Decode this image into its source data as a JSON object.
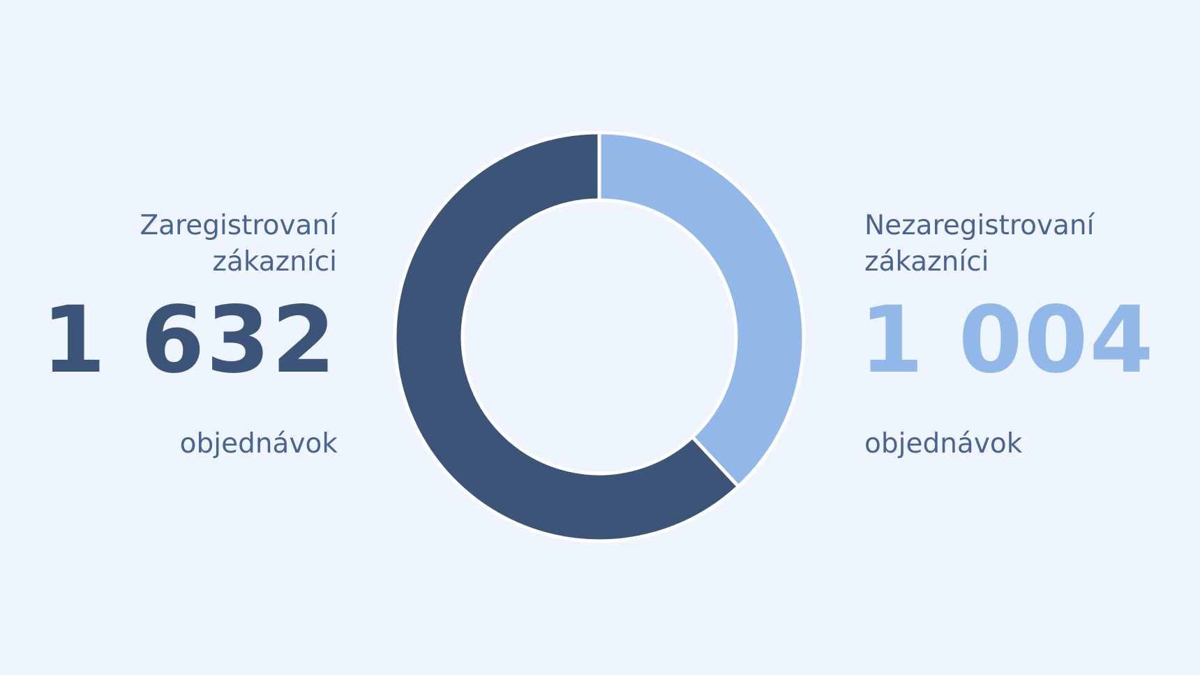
{
  "chart_data": {
    "type": "donut",
    "categories": [
      "Zaregistrovaní zákazníci",
      "Nezaregistrovaní zákazníci"
    ],
    "values": [
      1632,
      1004
    ],
    "value_labels": [
      "1 632",
      "1 004"
    ],
    "colors": [
      "#3b5477",
      "#91b8e9"
    ],
    "unit": "objednávok"
  }
}
